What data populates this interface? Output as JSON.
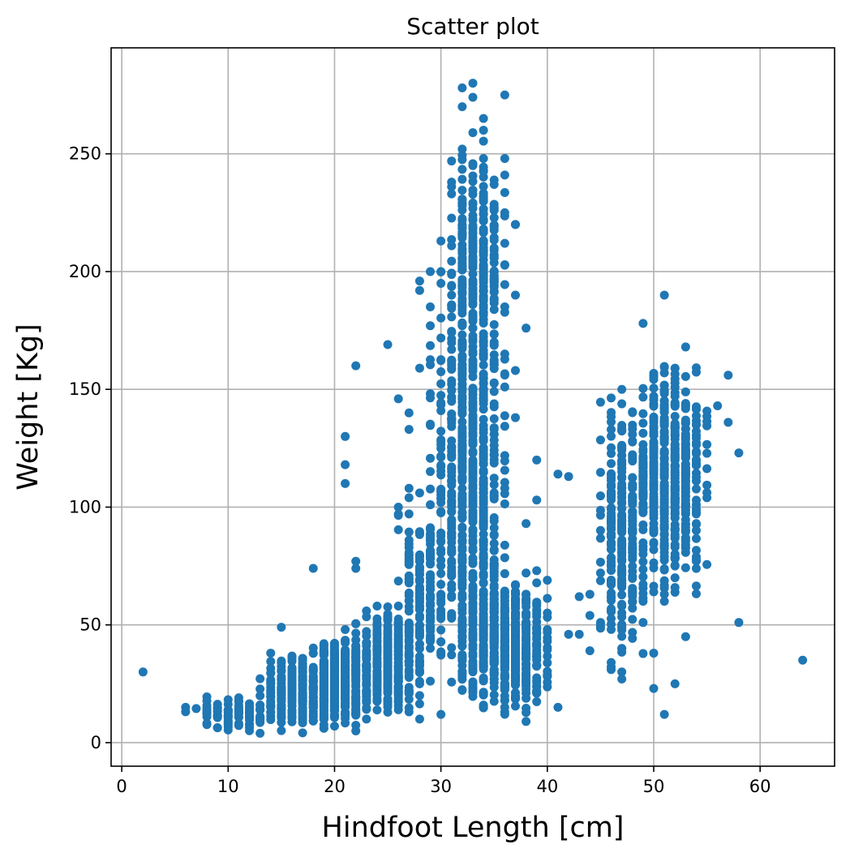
{
  "chart_data": {
    "type": "scatter",
    "title": "Scatter plot",
    "xlabel": "Hindfoot Length [cm]",
    "ylabel": "Weight [Kg]",
    "xlim": [
      -1,
      67
    ],
    "ylim": [
      -10,
      295
    ],
    "xticks": [
      0,
      10,
      20,
      30,
      40,
      50,
      60
    ],
    "yticks": [
      0,
      50,
      100,
      150,
      200,
      250
    ],
    "grid": true,
    "marker_color": "#1f77b4",
    "clusters": [
      {
        "x_range": [
          6,
          15
        ],
        "y_range": [
          4,
          20
        ],
        "n": 90
      },
      {
        "x_range": [
          13,
          20
        ],
        "y_range": [
          4,
          38
        ],
        "n": 260
      },
      {
        "x_range": [
          18,
          23
        ],
        "y_range": [
          5,
          48
        ],
        "n": 380
      },
      {
        "x_range": [
          22,
          28
        ],
        "y_range": [
          10,
          58
        ],
        "n": 360
      },
      {
        "x_range": [
          26,
          30
        ],
        "y_range": [
          20,
          105
        ],
        "n": 140
      },
      {
        "x_range": [
          29,
          36
        ],
        "y_range": [
          15,
          210
        ],
        "n": 700
      },
      {
        "x_range": [
          31,
          36
        ],
        "y_range": [
          150,
          260
        ],
        "n": 260
      },
      {
        "x_range": [
          32,
          40
        ],
        "y_range": [
          12,
          72
        ],
        "n": 600
      },
      {
        "x_range": [
          45,
          49
        ],
        "y_range": [
          30,
          150
        ],
        "n": 260
      },
      {
        "x_range": [
          48,
          55
        ],
        "y_range": [
          60,
          168
        ],
        "n": 520
      }
    ],
    "points": [
      [
        2,
        30
      ],
      [
        15,
        49
      ],
      [
        18,
        74
      ],
      [
        21,
        130
      ],
      [
        21,
        118
      ],
      [
        21,
        110
      ],
      [
        22,
        77
      ],
      [
        22,
        74
      ],
      [
        22,
        160
      ],
      [
        25,
        169
      ],
      [
        26,
        146
      ],
      [
        27,
        140
      ],
      [
        27,
        133
      ],
      [
        28,
        159
      ],
      [
        28,
        196
      ],
      [
        28,
        192
      ],
      [
        29,
        200
      ],
      [
        29,
        177
      ],
      [
        29,
        185
      ],
      [
        30,
        213
      ],
      [
        31,
        238
      ],
      [
        31,
        233
      ],
      [
        32,
        278
      ],
      [
        32,
        270
      ],
      [
        33,
        280
      ],
      [
        33,
        274
      ],
      [
        33,
        259
      ],
      [
        34,
        265
      ],
      [
        34,
        260
      ],
      [
        36,
        275
      ],
      [
        36,
        248
      ],
      [
        36,
        241
      ],
      [
        37,
        220
      ],
      [
        37,
        190
      ],
      [
        38,
        176
      ],
      [
        36,
        165
      ],
      [
        37,
        158
      ],
      [
        37,
        138
      ],
      [
        36,
        151
      ],
      [
        38,
        93
      ],
      [
        39,
        120
      ],
      [
        39,
        103
      ],
      [
        39,
        73
      ],
      [
        39,
        22
      ],
      [
        38,
        9
      ],
      [
        36,
        13
      ],
      [
        28,
        10
      ],
      [
        30,
        12
      ],
      [
        41,
        114
      ],
      [
        42,
        113
      ],
      [
        41,
        15
      ],
      [
        42,
        46
      ],
      [
        43,
        62
      ],
      [
        43,
        46
      ],
      [
        44,
        63
      ],
      [
        44,
        39
      ],
      [
        44,
        54
      ],
      [
        45,
        51
      ],
      [
        45,
        72
      ],
      [
        46,
        69
      ],
      [
        46,
        34
      ],
      [
        46,
        31
      ],
      [
        47,
        27
      ],
      [
        47,
        40
      ],
      [
        49,
        178
      ],
      [
        49,
        51
      ],
      [
        51,
        190
      ],
      [
        50,
        38
      ],
      [
        50,
        23
      ],
      [
        51,
        12
      ],
      [
        52,
        25
      ],
      [
        53,
        45
      ],
      [
        56,
        143
      ],
      [
        57,
        156
      ],
      [
        57,
        136
      ],
      [
        58,
        123
      ],
      [
        58,
        51
      ],
      [
        64,
        35
      ],
      [
        55,
        104
      ],
      [
        54,
        98
      ],
      [
        54,
        93
      ],
      [
        53,
        87
      ],
      [
        52,
        83
      ],
      [
        51,
        63
      ],
      [
        51,
        60
      ],
      [
        50,
        64
      ],
      [
        32,
        252
      ],
      [
        33,
        245
      ],
      [
        34,
        248
      ],
      [
        35,
        237
      ],
      [
        35,
        226
      ],
      [
        36,
        225
      ],
      [
        36,
        212
      ],
      [
        37,
        220
      ],
      [
        30,
        200
      ],
      [
        30,
        195
      ],
      [
        31,
        190
      ],
      [
        27,
        108
      ],
      [
        27,
        104
      ],
      [
        26,
        100
      ],
      [
        26,
        97
      ],
      [
        28,
        106
      ],
      [
        29,
        101
      ],
      [
        40,
        55
      ],
      [
        40,
        48
      ]
    ]
  }
}
